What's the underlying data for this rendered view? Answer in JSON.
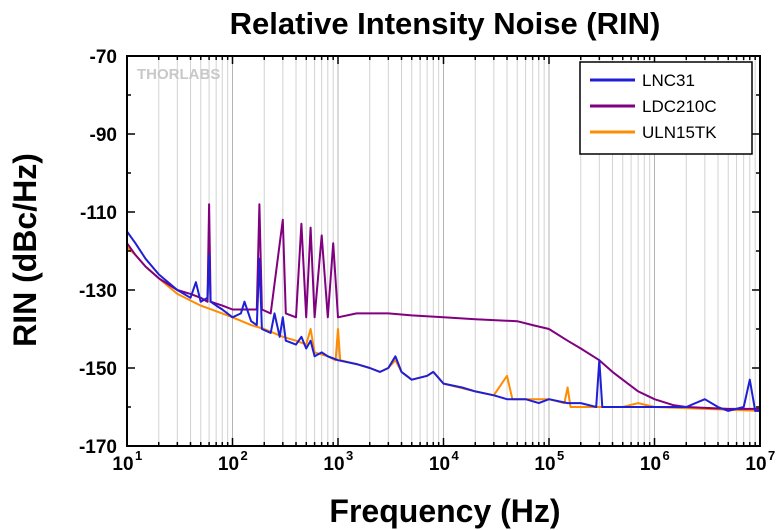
{
  "watermark": "THORLABS",
  "chart_data": {
    "type": "line",
    "title": "Relative Intensity Noise (RIN)",
    "xlabel": "Frequency (Hz)",
    "ylabel": "RIN (dBc/Hz)",
    "xscale": "log",
    "xlim": [
      10,
      10000000
    ],
    "ylim": [
      -170,
      -70
    ],
    "grid": "vertical minor and major on x",
    "legend_position": "top-right",
    "x_ticks": [
      {
        "value": 10,
        "base": "10",
        "exp": "1"
      },
      {
        "value": 100,
        "base": "10",
        "exp": "2"
      },
      {
        "value": 1000,
        "base": "10",
        "exp": "3"
      },
      {
        "value": 10000,
        "base": "10",
        "exp": "4"
      },
      {
        "value": 100000,
        "base": "10",
        "exp": "5"
      },
      {
        "value": 1000000,
        "base": "10",
        "exp": "6"
      },
      {
        "value": 10000000,
        "base": "10",
        "exp": "7"
      }
    ],
    "y_ticks": [
      -70,
      -90,
      -110,
      -130,
      -150,
      -170
    ],
    "series": [
      {
        "name": "LNC31",
        "color": "#1f1fd6",
        "points": [
          [
            10,
            -115
          ],
          [
            12,
            -118
          ],
          [
            15,
            -122
          ],
          [
            20,
            -126
          ],
          [
            30,
            -130
          ],
          [
            40,
            -132
          ],
          [
            45,
            -128
          ],
          [
            50,
            -133
          ],
          [
            58,
            -132
          ],
          [
            60,
            -121
          ],
          [
            62,
            -133
          ],
          [
            70,
            -134
          ],
          [
            80,
            -135
          ],
          [
            100,
            -137
          ],
          [
            120,
            -136
          ],
          [
            130,
            -133
          ],
          [
            150,
            -138
          ],
          [
            170,
            -139
          ],
          [
            180,
            -122
          ],
          [
            190,
            -140
          ],
          [
            230,
            -141
          ],
          [
            250,
            -136
          ],
          [
            280,
            -142
          ],
          [
            300,
            -137
          ],
          [
            320,
            -143
          ],
          [
            400,
            -144
          ],
          [
            450,
            -142
          ],
          [
            500,
            -145
          ],
          [
            550,
            -143
          ],
          [
            600,
            -147
          ],
          [
            700,
            -146
          ],
          [
            800,
            -147
          ],
          [
            1000,
            -148
          ],
          [
            1500,
            -149
          ],
          [
            2000,
            -150
          ],
          [
            2500,
            -151
          ],
          [
            3000,
            -150
          ],
          [
            3500,
            -147
          ],
          [
            4000,
            -151
          ],
          [
            5000,
            -153
          ],
          [
            7000,
            -152
          ],
          [
            8000,
            -151
          ],
          [
            10000,
            -154
          ],
          [
            15000,
            -155
          ],
          [
            20000,
            -156
          ],
          [
            30000,
            -157
          ],
          [
            40000,
            -158
          ],
          [
            60000,
            -158
          ],
          [
            80000,
            -159
          ],
          [
            100000,
            -158
          ],
          [
            150000,
            -159
          ],
          [
            200000,
            -159
          ],
          [
            280000,
            -160
          ],
          [
            300000,
            -148
          ],
          [
            320000,
            -160
          ],
          [
            500000,
            -160
          ],
          [
            700000,
            -160
          ],
          [
            1000000,
            -160
          ],
          [
            2000000,
            -160
          ],
          [
            3000000,
            -158
          ],
          [
            4000000,
            -160
          ],
          [
            5000000,
            -161
          ],
          [
            7000000,
            -160
          ],
          [
            8000000,
            -153
          ],
          [
            9000000,
            -161
          ],
          [
            10000000,
            -161
          ]
        ]
      },
      {
        "name": "LDC210C",
        "color": "#800080",
        "points": [
          [
            10,
            -118
          ],
          [
            12,
            -121
          ],
          [
            15,
            -124
          ],
          [
            20,
            -127
          ],
          [
            30,
            -130
          ],
          [
            40,
            -131
          ],
          [
            50,
            -132
          ],
          [
            58,
            -133
          ],
          [
            60,
            -108
          ],
          [
            62,
            -133
          ],
          [
            80,
            -134
          ],
          [
            100,
            -135
          ],
          [
            150,
            -135
          ],
          [
            170,
            -135
          ],
          [
            180,
            -108
          ],
          [
            190,
            -135
          ],
          [
            230,
            -136
          ],
          [
            300,
            -112
          ],
          [
            320,
            -136
          ],
          [
            400,
            -137
          ],
          [
            450,
            -113
          ],
          [
            500,
            -137
          ],
          [
            550,
            -114
          ],
          [
            600,
            -137
          ],
          [
            700,
            -116
          ],
          [
            800,
            -137
          ],
          [
            900,
            -118
          ],
          [
            1000,
            -137
          ],
          [
            1500,
            -136
          ],
          [
            2000,
            -136
          ],
          [
            3000,
            -136
          ],
          [
            5000,
            -136.5
          ],
          [
            10000,
            -137
          ],
          [
            20000,
            -137.5
          ],
          [
            50000,
            -138
          ],
          [
            70000,
            -139
          ],
          [
            100000,
            -140
          ],
          [
            150000,
            -143
          ],
          [
            200000,
            -145
          ],
          [
            300000,
            -148
          ],
          [
            400000,
            -151
          ],
          [
            500000,
            -153
          ],
          [
            700000,
            -156
          ],
          [
            1000000,
            -158
          ],
          [
            1500000,
            -159.5
          ],
          [
            2000000,
            -160
          ],
          [
            5000000,
            -160.5
          ],
          [
            10000000,
            -160.5
          ]
        ]
      },
      {
        "name": "ULN15TK",
        "color": "#ff8c00",
        "points": [
          [
            10,
            -119
          ],
          [
            12,
            -121
          ],
          [
            15,
            -124
          ],
          [
            20,
            -127
          ],
          [
            30,
            -131
          ],
          [
            50,
            -134
          ],
          [
            80,
            -136
          ],
          [
            100,
            -137
          ],
          [
            150,
            -139
          ],
          [
            200,
            -140
          ],
          [
            300,
            -142
          ],
          [
            400,
            -143
          ],
          [
            500,
            -144
          ],
          [
            550,
            -140
          ],
          [
            600,
            -146
          ],
          [
            800,
            -147
          ],
          [
            950,
            -148
          ],
          [
            1000,
            -140
          ],
          [
            1050,
            -148
          ],
          [
            1500,
            -149
          ],
          [
            2000,
            -150
          ],
          [
            2500,
            -151
          ],
          [
            3000,
            -150
          ],
          [
            3500,
            -148
          ],
          [
            4000,
            -151
          ],
          [
            5000,
            -153
          ],
          [
            7000,
            -152
          ],
          [
            8000,
            -151
          ],
          [
            10000,
            -154
          ],
          [
            20000,
            -156
          ],
          [
            30000,
            -157
          ],
          [
            40000,
            -152
          ],
          [
            45000,
            -158
          ],
          [
            60000,
            -158
          ],
          [
            100000,
            -158
          ],
          [
            140000,
            -159
          ],
          [
            150000,
            -155
          ],
          [
            160000,
            -160
          ],
          [
            300000,
            -160
          ],
          [
            500000,
            -160
          ],
          [
            700000,
            -159
          ],
          [
            1000000,
            -160
          ],
          [
            3000000,
            -160.5
          ],
          [
            10000000,
            -161
          ]
        ]
      }
    ]
  }
}
